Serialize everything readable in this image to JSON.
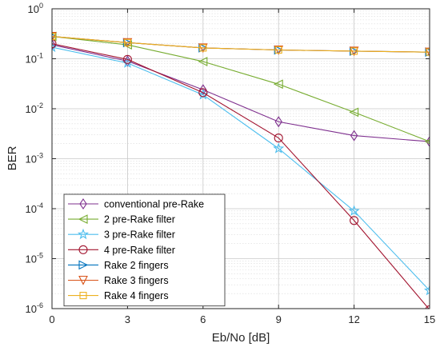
{
  "chart_data": {
    "type": "line",
    "xlabel": "Eb/No [dB]",
    "ylabel": "BER",
    "xlim": [
      0,
      15
    ],
    "ylim": [
      1e-06,
      1
    ],
    "yscale": "log",
    "grid": true,
    "minor_grid": true,
    "legend_position": "bottom-left",
    "xticks": [
      {
        "value": 0,
        "label": "0"
      },
      {
        "value": 3,
        "label": "3"
      },
      {
        "value": 6,
        "label": "6"
      },
      {
        "value": 9,
        "label": "9"
      },
      {
        "value": 12,
        "label": "12"
      },
      {
        "value": 15,
        "label": "15"
      }
    ],
    "yticks": [
      {
        "exp": 0,
        "base": "10",
        "power": "0"
      },
      {
        "exp": -1,
        "base": "10",
        "power": "-1"
      },
      {
        "exp": -2,
        "base": "10",
        "power": "-2"
      },
      {
        "exp": -3,
        "base": "10",
        "power": "-3"
      },
      {
        "exp": -4,
        "base": "10",
        "power": "-4"
      },
      {
        "exp": -5,
        "base": "10",
        "power": "-5"
      },
      {
        "exp": -6,
        "base": "10",
        "power": "-6"
      }
    ],
    "series": [
      {
        "name": "conventional pre-Rake",
        "color": "#7E2F8E",
        "marker": "diamond",
        "x": [
          0,
          3,
          6,
          9,
          12,
          15
        ],
        "y": [
          0.19,
          0.09,
          0.024,
          0.0055,
          0.0029,
          0.0022
        ]
      },
      {
        "name": "2 pre-Rake filter",
        "color": "#77AC30",
        "marker": "triangle-left",
        "x": [
          0,
          3,
          6,
          9,
          12,
          15
        ],
        "y": [
          0.28,
          0.19,
          0.088,
          0.031,
          0.0085,
          0.0022
        ]
      },
      {
        "name": "3 pre-Rake filter",
        "color": "#4DBEEE",
        "marker": "star",
        "x": [
          0,
          3,
          6,
          9,
          12,
          15
        ],
        "y": [
          0.17,
          0.082,
          0.019,
          0.0016,
          9e-05,
          2.3e-06
        ]
      },
      {
        "name": "4 pre-Rake filter",
        "color": "#A2142F",
        "marker": "circle",
        "x": [
          0,
          3,
          6,
          9,
          12,
          15
        ],
        "y": [
          0.2,
          0.097,
          0.021,
          0.0026,
          5.8e-05,
          9.5e-07
        ]
      },
      {
        "name": "Rake 2 fingers",
        "color": "#0072BD",
        "marker": "triangle-right",
        "x": [
          0,
          3,
          6,
          9,
          12,
          15
        ],
        "y": [
          0.28,
          0.21,
          0.165,
          0.15,
          0.142,
          0.136
        ]
      },
      {
        "name": "Rake 3 fingers",
        "color": "#D95319",
        "marker": "triangle-down",
        "x": [
          0,
          3,
          6,
          9,
          12,
          15
        ],
        "y": [
          0.28,
          0.21,
          0.165,
          0.15,
          0.142,
          0.136
        ]
      },
      {
        "name": "Rake 4 fingers",
        "color": "#EDB120",
        "marker": "square",
        "x": [
          0,
          3,
          6,
          9,
          12,
          15
        ],
        "y": [
          0.28,
          0.21,
          0.165,
          0.15,
          0.142,
          0.136
        ]
      }
    ]
  }
}
